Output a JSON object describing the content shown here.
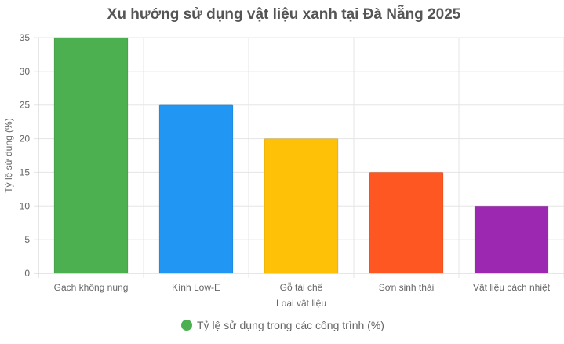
{
  "chart_data": {
    "type": "bar",
    "title": "Xu hướng sử dụng vật liệu xanh tại Đà Nẵng 2025",
    "xlabel": "Loại vật liệu",
    "ylabel": "Tỷ lệ sử dụng (%)",
    "categories": [
      "Gạch không nung",
      "Kính Low-E",
      "Gỗ tái chế",
      "Sơn sinh thái",
      "Vật liệu cách nhiệt"
    ],
    "series": [
      {
        "name": "Tỷ lệ sử dụng trong các công trình (%)",
        "values": [
          35,
          25,
          20,
          15,
          10
        ]
      }
    ],
    "bar_colors": [
      "#4CAF50",
      "#2196F3",
      "#FFC107",
      "#FF5722",
      "#9C27B0"
    ],
    "legend_color": "#4CAF50",
    "ylim": [
      0,
      35
    ],
    "yticks": [
      0,
      5,
      10,
      15,
      20,
      25,
      30,
      35
    ],
    "grid": true,
    "legend_position": "bottom"
  }
}
